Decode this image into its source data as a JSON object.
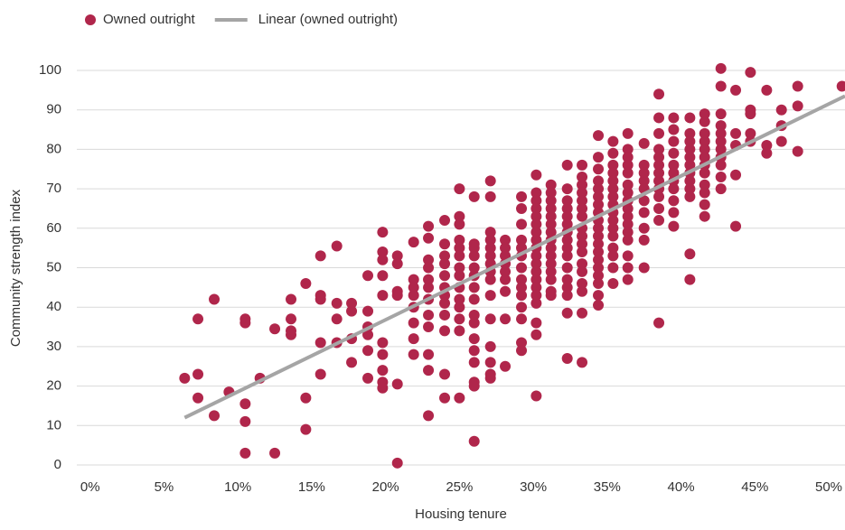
{
  "chart_data": {
    "type": "scatter",
    "xlabel": "Housing tenure",
    "ylabel": "Community strength index",
    "xlim": [
      -0.9,
      51.1
    ],
    "ylim": [
      0,
      100
    ],
    "xticks": [
      {
        "value": 0,
        "label": "0%"
      },
      {
        "value": 5,
        "label": "5%"
      },
      {
        "value": 10,
        "label": "10%"
      },
      {
        "value": 15,
        "label": "15%"
      },
      {
        "value": 20,
        "label": "20%"
      },
      {
        "value": 25,
        "label": "25%"
      },
      {
        "value": 30,
        "label": "30%"
      },
      {
        "value": 35,
        "label": "35%"
      },
      {
        "value": 40,
        "label": "40%"
      },
      {
        "value": 45,
        "label": "45%"
      },
      {
        "value": 50,
        "label": "50%"
      }
    ],
    "yticks": [
      0,
      10,
      20,
      30,
      40,
      50,
      60,
      70,
      80,
      90,
      100
    ],
    "grid": true,
    "legend": "top-left",
    "series": [
      {
        "name": "Owned outright",
        "color": "#b0264b",
        "type": "scatter",
        "x": [
          6.4,
          7.3,
          7.3,
          7.3,
          8.4,
          8.4,
          9.4,
          10.5,
          10.5,
          10.5,
          10.5,
          10.5,
          11.5,
          12.5,
          12.5,
          13.6,
          13.6,
          13.6,
          13.6,
          14.6,
          14.6,
          14.6,
          15.6,
          15.6,
          15.6,
          15.6,
          15.6,
          16.7,
          16.7,
          16.7,
          16.7,
          17.7,
          17.7,
          17.7,
          17.7,
          18.8,
          18.8,
          18.8,
          18.8,
          18.8,
          18.8,
          19.8,
          19.8,
          19.8,
          19.8,
          19.8,
          19.8,
          19.8,
          19.8,
          19.8,
          19.8,
          20.8,
          20.8,
          20.8,
          20.8,
          20.8,
          20.8,
          21.9,
          21.9,
          21.9,
          21.9,
          21.9,
          21.9,
          21.9,
          21.9,
          22.9,
          22.9,
          22.9,
          22.9,
          22.9,
          22.9,
          22.9,
          22.9,
          22.9,
          22.9,
          22.9,
          22.9,
          24.0,
          24.0,
          24.0,
          24.0,
          24.0,
          24.0,
          24.0,
          24.0,
          24.0,
          24.0,
          24.0,
          24.0,
          25.0,
          25.0,
          25.0,
          25.0,
          25.0,
          25.0,
          25.0,
          25.0,
          25.0,
          25.0,
          25.0,
          25.0,
          25.0,
          25.0,
          26.0,
          26.0,
          26.0,
          26.0,
          26.0,
          26.0,
          26.0,
          26.0,
          26.0,
          26.0,
          26.0,
          26.0,
          26.0,
          26.0,
          26.0,
          26.0,
          27.1,
          27.1,
          27.1,
          27.1,
          27.1,
          27.1,
          27.1,
          27.1,
          27.1,
          27.1,
          27.1,
          27.1,
          27.1,
          27.1,
          27.1,
          28.1,
          28.1,
          28.1,
          28.1,
          28.1,
          28.1,
          28.1,
          28.1,
          28.1,
          29.2,
          29.2,
          29.2,
          29.2,
          29.2,
          29.2,
          29.2,
          29.2,
          29.2,
          29.2,
          29.2,
          29.2,
          29.2,
          29.2,
          30.2,
          30.2,
          30.2,
          30.2,
          30.2,
          30.2,
          30.2,
          30.2,
          30.2,
          30.2,
          30.2,
          30.2,
          30.2,
          30.2,
          30.2,
          30.2,
          30.2,
          30.2,
          30.2,
          31.2,
          31.2,
          31.2,
          31.2,
          31.2,
          31.2,
          31.2,
          31.2,
          31.2,
          31.2,
          31.2,
          31.2,
          31.2,
          31.2,
          31.2,
          32.3,
          32.3,
          32.3,
          32.3,
          32.3,
          32.3,
          32.3,
          32.3,
          32.3,
          32.3,
          32.3,
          32.3,
          32.3,
          32.3,
          32.3,
          32.3,
          33.3,
          33.3,
          33.3,
          33.3,
          33.3,
          33.3,
          33.3,
          33.3,
          33.3,
          33.3,
          33.3,
          33.3,
          33.3,
          33.3,
          33.3,
          33.3,
          33.3,
          34.4,
          34.4,
          34.4,
          34.4,
          34.4,
          34.4,
          34.4,
          34.4,
          34.4,
          34.4,
          34.4,
          34.4,
          34.4,
          34.4,
          34.4,
          34.4,
          34.4,
          34.4,
          34.4,
          35.4,
          35.4,
          35.4,
          35.4,
          35.4,
          35.4,
          35.4,
          35.4,
          35.4,
          35.4,
          35.4,
          35.4,
          35.4,
          35.4,
          35.4,
          35.4,
          36.4,
          36.4,
          36.4,
          36.4,
          36.4,
          36.4,
          36.4,
          36.4,
          36.4,
          36.4,
          36.4,
          36.4,
          36.4,
          36.4,
          36.4,
          36.4,
          37.5,
          37.5,
          37.5,
          37.5,
          37.5,
          37.5,
          37.5,
          37.5,
          37.5,
          37.5,
          38.5,
          38.5,
          38.5,
          38.5,
          38.5,
          38.5,
          38.5,
          38.5,
          38.5,
          38.5,
          38.5,
          38.5,
          38.5,
          39.5,
          39.5,
          39.5,
          39.5,
          39.5,
          39.5,
          39.5,
          39.5,
          39.5,
          39.5,
          39.5,
          40.6,
          40.6,
          40.6,
          40.6,
          40.6,
          40.6,
          40.6,
          40.6,
          40.6,
          40.6,
          40.6,
          40.6,
          41.6,
          41.6,
          41.6,
          41.6,
          41.6,
          41.6,
          41.6,
          41.6,
          41.6,
          41.6,
          41.6,
          41.6,
          42.7,
          42.7,
          42.7,
          42.7,
          42.7,
          42.7,
          42.7,
          42.7,
          42.7,
          42.7,
          42.7,
          43.7,
          43.7,
          43.7,
          43.7,
          43.7,
          44.7,
          44.7,
          44.7,
          44.7,
          44.7,
          45.8,
          45.8,
          45.8,
          46.8,
          46.8,
          46.8,
          47.9,
          47.9,
          47.9,
          50.9
        ],
        "values": [
          22,
          37,
          23,
          17,
          12.5,
          42,
          18.5,
          37,
          36,
          15.5,
          11,
          3,
          22,
          34.5,
          3,
          42,
          37,
          34,
          33,
          46,
          17,
          9,
          53,
          43,
          42,
          31,
          23,
          55.5,
          41,
          37,
          31,
          41,
          39,
          32,
          26,
          48,
          39,
          35,
          33,
          29,
          22,
          59,
          54,
          52,
          48,
          43,
          31,
          28,
          24,
          21,
          19.5,
          53,
          51,
          44,
          43,
          20.5,
          0.5,
          56.5,
          47,
          45,
          43,
          40,
          36,
          32,
          28,
          60.5,
          57.5,
          52,
          50,
          47,
          45,
          42,
          38,
          35,
          28,
          24,
          12.5,
          62,
          56,
          53,
          51,
          48,
          45,
          43,
          41,
          38,
          34,
          23,
          17,
          70,
          63,
          61,
          57,
          55,
          53,
          50,
          48,
          45,
          42,
          40,
          37,
          34,
          17,
          68,
          56,
          55,
          53,
          50,
          48,
          45,
          42,
          38,
          36,
          32,
          29,
          26,
          21,
          20,
          6,
          72,
          68,
          59,
          57,
          55,
          53,
          51,
          49,
          47,
          43,
          37,
          30,
          26,
          23,
          22,
          57,
          55,
          53,
          51,
          49,
          47,
          44,
          37,
          25,
          68,
          65,
          61,
          57,
          55,
          53,
          50,
          47,
          45,
          43,
          40,
          37,
          31,
          29,
          73.5,
          69,
          67,
          65,
          63,
          61,
          59,
          57,
          55,
          53,
          51,
          49,
          47,
          45,
          43,
          41,
          36,
          33,
          17.5,
          71,
          69,
          67,
          65,
          63,
          61,
          59,
          57,
          55,
          53,
          51,
          49,
          47,
          44,
          43,
          76,
          70,
          67,
          65,
          63,
          61,
          59,
          57,
          55,
          53,
          50,
          47,
          45,
          43,
          38.5,
          27,
          76,
          73,
          71,
          69,
          67,
          65,
          63,
          60,
          58,
          56,
          54,
          51,
          49,
          46,
          44,
          38.5,
          26,
          83.5,
          78,
          75,
          72,
          70,
          68,
          66,
          64,
          62,
          60,
          58,
          56,
          54,
          52,
          50,
          48,
          46,
          43,
          40.5,
          82,
          79,
          76,
          74,
          72,
          70,
          68,
          66,
          64,
          62,
          60,
          58,
          55,
          53,
          50,
          46,
          84,
          80,
          78,
          76,
          74,
          71,
          69,
          67,
          65,
          63,
          61,
          59,
          57,
          53,
          50,
          47,
          81.5,
          76,
          74,
          72,
          70,
          67,
          64,
          60,
          57,
          50,
          94,
          88,
          84,
          80,
          78,
          76,
          74,
          72,
          70,
          68,
          65,
          62,
          36,
          88,
          85,
          82,
          79,
          76,
          74,
          72,
          70,
          67,
          64,
          60.5,
          88,
          84,
          82,
          80,
          78,
          76,
          74,
          72,
          70,
          68,
          53.5,
          47,
          89,
          87,
          84,
          82,
          80,
          78,
          76,
          74,
          71,
          69,
          66,
          63,
          100.5,
          96,
          89,
          86,
          84,
          82,
          80,
          78,
          76,
          73,
          70,
          95,
          84,
          81,
          73.5,
          60.5,
          99.5,
          90,
          89,
          84,
          82,
          95,
          81,
          79,
          90,
          86,
          82,
          96,
          91,
          79.5,
          96
        ]
      },
      {
        "name": "Linear (owned outright)",
        "color": "#a5a5a5",
        "type": "line",
        "x": [
          6.4,
          51.1
        ],
        "values": [
          12,
          93.5
        ]
      }
    ]
  }
}
